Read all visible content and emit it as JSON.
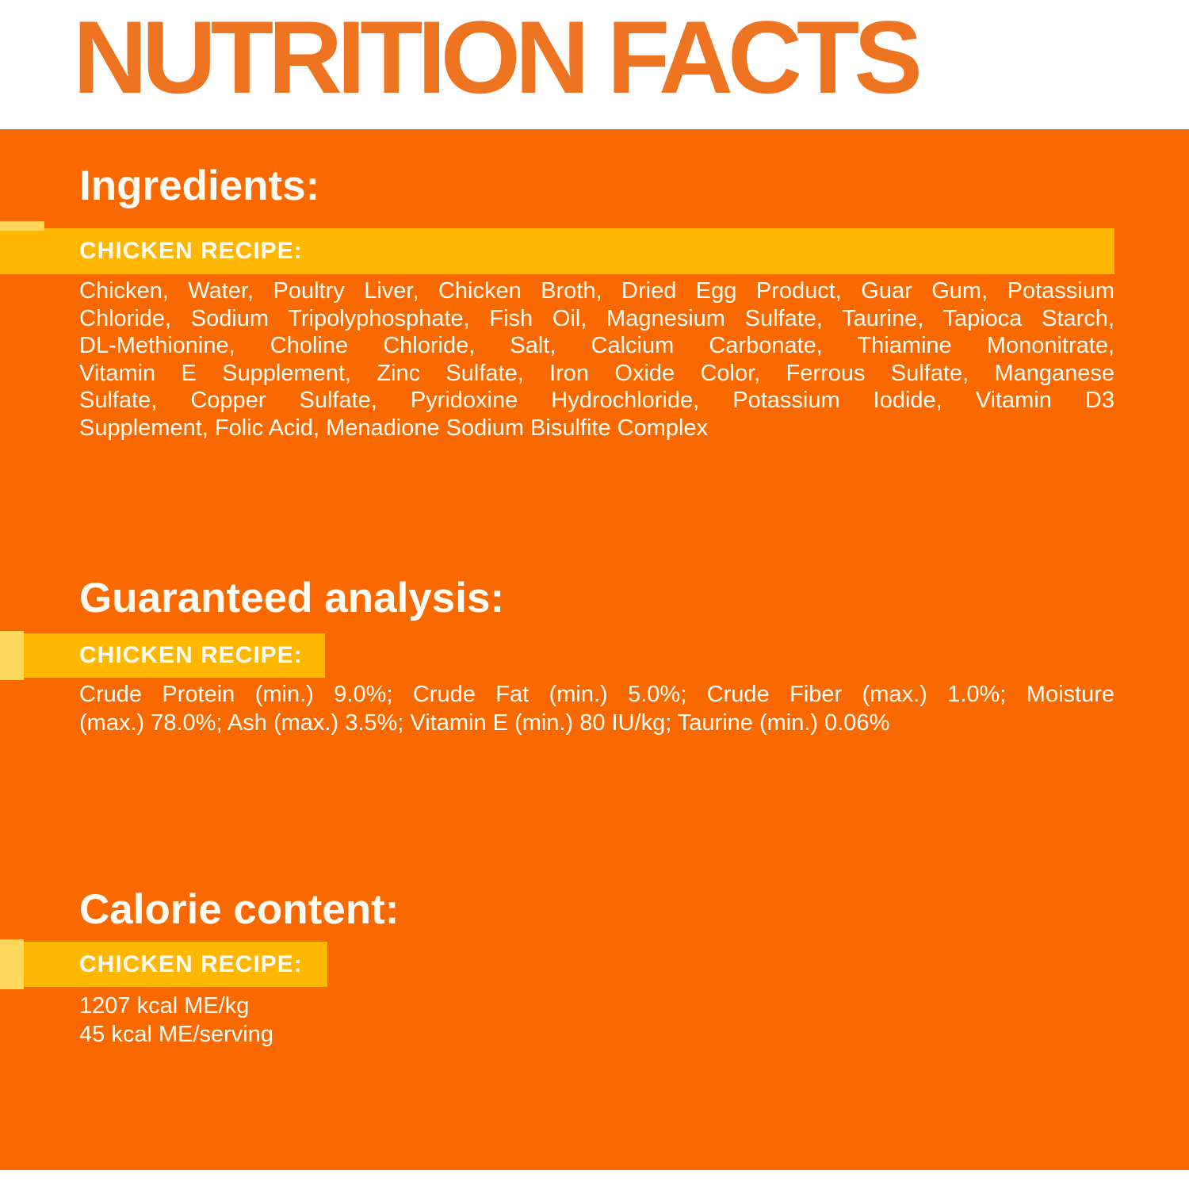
{
  "header": {
    "title": "NUTRITION FACTS"
  },
  "sections": [
    {
      "heading": "Ingredients:",
      "recipe_label": "CHICKEN RECIPE:",
      "body_lines": [
        "Chicken, Water, Poultry Liver, Chicken Broth, Dried Egg Product, Guar Gum, Potassium",
        "Chloride, Sodium Tripolyphosphate, Fish Oil, Magnesium Sulfate, Taurine, Tapioca Starch,",
        "DL-Methionine, Choline Chloride, Salt, Calcium Carbonate, Thiamine Mononitrate,",
        "Vitamin E Supplement, Zinc Sulfate, Iron Oxide Color, Ferrous Sulfate, Manganese",
        "Sulfate, Copper Sulfate, Pyridoxine Hydrochloride, Potassium Iodide, Vitamin D3",
        "Supplement, Folic Acid, Menadione Sodium Bisulfite Complex"
      ]
    },
    {
      "heading": "Guaranteed analysis:",
      "recipe_label": "CHICKEN RECIPE:",
      "body_lines": [
        "Crude Protein (min.) 9.0%; Crude Fat (min.) 5.0%; Crude Fiber (max.) 1.0%; Moisture",
        "(max.) 78.0%; Ash (max.) 3.5%; Vitamin E (min.) 80 IU/kg; Taurine (min.) 0.06%"
      ]
    },
    {
      "heading": "Calorie content:",
      "recipe_label": "CHICKEN RECIPE:",
      "lines": [
        "1207 kcal ME/kg",
        "45 kcal ME/serving"
      ]
    }
  ],
  "colors": {
    "background_orange": "#FA6900",
    "title_orange": "#EE7421",
    "band_gold": "#FFB702",
    "band_pale_yellow": "#FFD75A",
    "text_white": "#FFFDF6",
    "header_white": "#FFFFFF"
  }
}
